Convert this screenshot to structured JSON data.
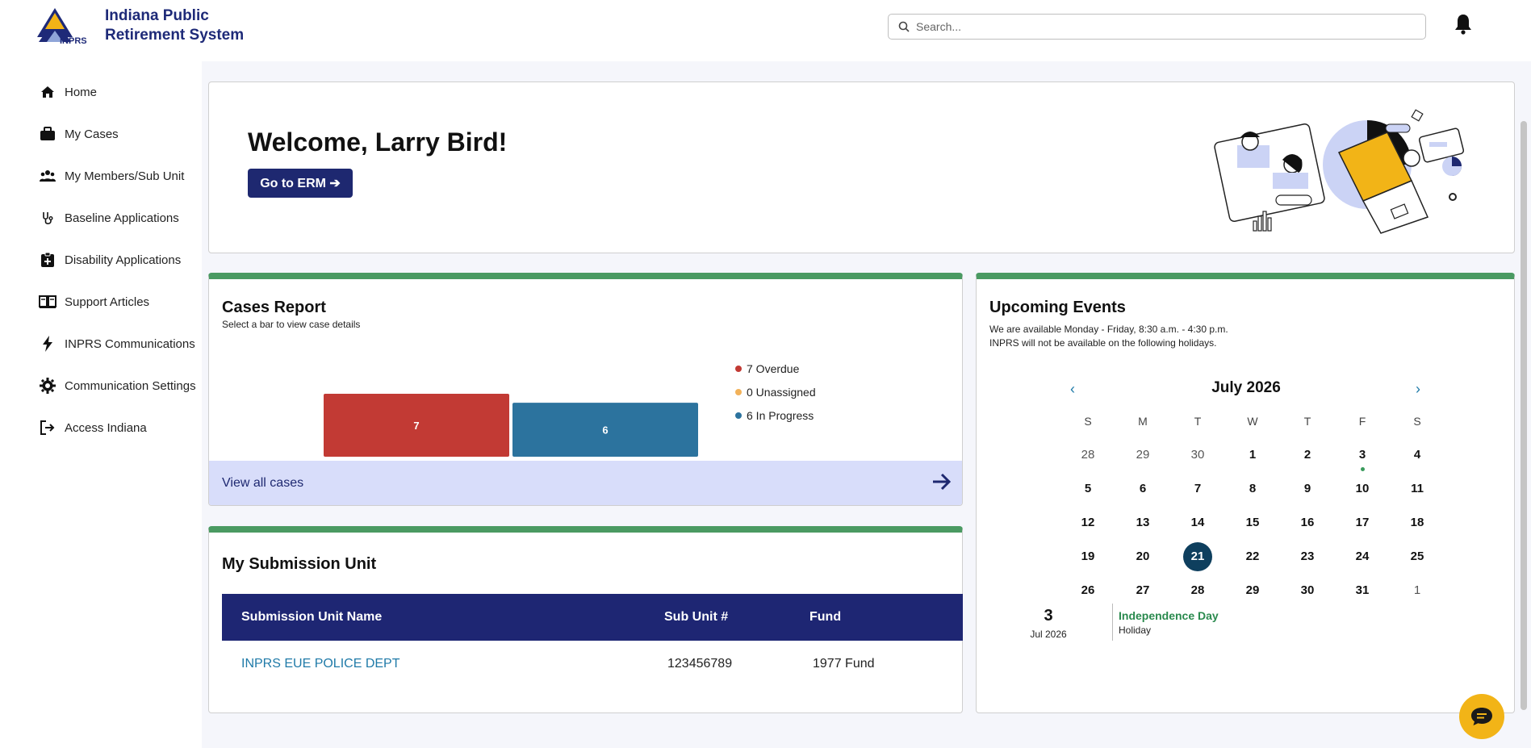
{
  "brand": {
    "line1": "Indiana Public",
    "line2": "Retirement System",
    "logo_text": "INPRS",
    "logo_icon": "inprs-logo"
  },
  "search": {
    "placeholder": "Search..."
  },
  "notifications": {
    "icon": "bell-icon"
  },
  "sidebar": {
    "items": [
      {
        "label": "Home",
        "icon": "home-icon"
      },
      {
        "label": "My Cases",
        "icon": "briefcase-icon"
      },
      {
        "label": "My Members/Sub Unit",
        "icon": "users-icon"
      },
      {
        "label": "Baseline Applications",
        "icon": "stethoscope-icon"
      },
      {
        "label": "Disability Applications",
        "icon": "clipboard-plus-icon"
      },
      {
        "label": "Support Articles",
        "icon": "book-icon"
      },
      {
        "label": "INPRS Communications",
        "icon": "lightning-icon"
      },
      {
        "label": "Communication Settings",
        "icon": "gear-icon"
      },
      {
        "label": "Access Indiana",
        "icon": "sign-out-icon"
      }
    ]
  },
  "welcome": {
    "title": "Welcome, Larry Bird!",
    "button": "Go to ERM ➔"
  },
  "cases_report": {
    "title": "Cases Report",
    "subtitle": "Select a bar to view case details",
    "view_all": "View all cases",
    "legend": [
      {
        "label": "7 Overdue",
        "color": "#c23a34"
      },
      {
        "label": "0 Unassigned",
        "color": "#f2b25a"
      },
      {
        "label": "6 In Progress",
        "color": "#2c739e"
      }
    ]
  },
  "chart_data": {
    "type": "bar",
    "categories": [
      "Overdue",
      "Unassigned",
      "In Progress"
    ],
    "values": [
      7,
      0,
      6
    ],
    "colors": [
      "#c23a34",
      "#f2b25a",
      "#2c739e"
    ],
    "data_labels": [
      "7",
      "",
      "6"
    ],
    "title": "",
    "xlabel": "",
    "ylabel": "",
    "ylim": [
      0,
      7
    ]
  },
  "submission_unit": {
    "title": "My Submission Unit",
    "headers": [
      "Submission Unit Name",
      "Sub Unit #",
      "Fund"
    ],
    "rows": [
      {
        "name": "INPRS EUE POLICE DEPT",
        "sub_unit": "123456789",
        "fund": "1977 Fund"
      }
    ]
  },
  "events": {
    "title": "Upcoming Events",
    "note1": "We are available Monday - Friday, 8:30 a.m. - 4:30 p.m.",
    "note2": "INPRS will not be available on the following holidays.",
    "month": "July 2026",
    "prev": "‹",
    "next": "›",
    "weekdays": [
      "S",
      "M",
      "T",
      "W",
      "T",
      "F",
      "S"
    ],
    "weeks": [
      [
        "28",
        "29",
        "30",
        "1",
        "2",
        "3",
        "4"
      ],
      [
        "5",
        "6",
        "7",
        "8",
        "9",
        "10",
        "11"
      ],
      [
        "12",
        "13",
        "14",
        "15",
        "16",
        "17",
        "18"
      ],
      [
        "19",
        "20",
        "21",
        "22",
        "23",
        "24",
        "25"
      ],
      [
        "26",
        "27",
        "28",
        "29",
        "30",
        "31",
        "1"
      ]
    ],
    "selected_day": "21",
    "event": {
      "day": "3",
      "month_year": "Jul 2026",
      "name": "Independence Day",
      "type": "Holiday"
    }
  },
  "chat": {
    "icon": "chat-icon"
  }
}
